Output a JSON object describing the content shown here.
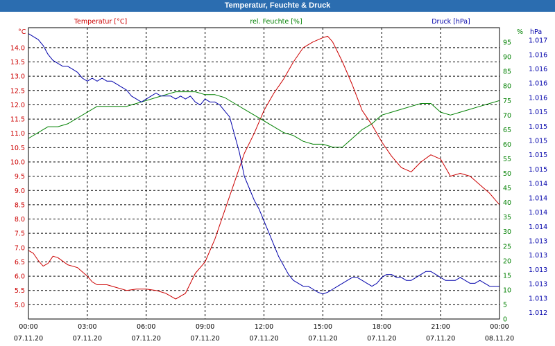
{
  "chart_data": {
    "type": "line",
    "title": "Temperatur, Feuchte & Druck",
    "x_labels": [
      {
        "time": "00:00",
        "date": "07.11.20"
      },
      {
        "time": "03:00",
        "date": "07.11.20"
      },
      {
        "time": "06:00",
        "date": "07.11.20"
      },
      {
        "time": "09:00",
        "date": "07.11.20"
      },
      {
        "time": "12:00",
        "date": "07.11.20"
      },
      {
        "time": "15:00",
        "date": "07.11.20"
      },
      {
        "time": "18:00",
        "date": "07.11.20"
      },
      {
        "time": "21:00",
        "date": "07.11.20"
      },
      {
        "time": "00:00",
        "date": "08.11.20"
      }
    ],
    "x_range_hours": [
      0,
      24
    ],
    "axes": {
      "temperature": {
        "label": "Temperatur [°C]",
        "unit": "°C",
        "color": "#cc0000",
        "side": "left",
        "range": [
          4.5,
          14.7
        ],
        "ticks": [
          "5.0",
          "5.5",
          "6.0",
          "6.5",
          "7.0",
          "7.5",
          "8.0",
          "8.5",
          "9.0",
          "9.5",
          "10.0",
          "10.5",
          "11.0",
          "11.5",
          "12.0",
          "12.5",
          "13.0",
          "13.5",
          "14.0"
        ]
      },
      "humidity": {
        "label": "rel. Feuchte [%]",
        "unit": "%",
        "color": "#008000",
        "side": "right",
        "range": [
          0,
          100
        ],
        "ticks": [
          "0",
          "5",
          "10",
          "15",
          "20",
          "25",
          "30",
          "35",
          "40",
          "45",
          "50",
          "55",
          "60",
          "65",
          "70",
          "75",
          "80",
          "85",
          "90",
          "95"
        ]
      },
      "pressure": {
        "label": "Druck [hPa]",
        "unit": "hPa",
        "color": "#0000aa",
        "side": "right-outer",
        "range": [
          1012.2,
          1017.1
        ],
        "ticks": [
          "1.012",
          "1.013",
          "1.013",
          "1.013",
          "1.013",
          "1.013",
          "1.014",
          "1.014",
          "1.014",
          "1.014",
          "1.015",
          "1.015",
          "1.015",
          "1.015",
          "1.015",
          "1.016",
          "1.016",
          "1.016",
          "1.016",
          "1.017"
        ]
      }
    },
    "series": [
      {
        "name": "Temperatur",
        "axis": "temperature",
        "color": "#cc0000",
        "x": [
          0,
          0.25,
          0.5,
          0.75,
          1,
          1.25,
          1.5,
          2,
          2.5,
          3,
          3.25,
          3.5,
          4,
          4.5,
          5,
          5.5,
          6,
          6.5,
          7,
          7.5,
          8,
          8.5,
          9,
          9.5,
          10,
          10.5,
          11,
          11.5,
          12,
          12.5,
          13,
          13.5,
          14,
          14.5,
          15,
          15.25,
          15.5,
          16,
          16.5,
          17,
          17.5,
          18,
          18.5,
          19,
          19.5,
          20,
          20.5,
          21,
          21.5,
          22,
          22.5,
          23,
          23.5,
          24
        ],
        "values": [
          6.9,
          6.8,
          6.55,
          6.35,
          6.45,
          6.7,
          6.65,
          6.4,
          6.3,
          6.0,
          5.8,
          5.7,
          5.7,
          5.6,
          5.5,
          5.55,
          5.55,
          5.5,
          5.4,
          5.2,
          5.4,
          6.1,
          6.5,
          7.3,
          8.3,
          9.3,
          10.3,
          11.0,
          11.8,
          12.4,
          12.9,
          13.5,
          14.0,
          14.2,
          14.35,
          14.4,
          14.2,
          13.5,
          12.7,
          11.8,
          11.3,
          10.7,
          10.2,
          9.8,
          9.65,
          10.0,
          10.25,
          10.1,
          9.5,
          9.6,
          9.5,
          9.2,
          8.9,
          8.5
        ]
      },
      {
        "name": "rel. Feuchte",
        "axis": "humidity",
        "color": "#008000",
        "x": [
          0,
          0.5,
          1,
          1.5,
          2,
          2.5,
          3,
          3.5,
          4,
          4.5,
          5,
          5.5,
          6,
          6.5,
          7,
          7.5,
          8,
          8.5,
          9,
          9.5,
          10,
          10.5,
          11,
          11.5,
          12,
          12.5,
          13,
          13.5,
          14,
          14.5,
          15,
          15.5,
          16,
          16.5,
          17,
          17.5,
          18,
          18.5,
          19,
          19.5,
          20,
          20.5,
          21,
          21.5,
          22,
          22.5,
          23,
          23.5,
          24
        ],
        "values": [
          62,
          64,
          66,
          66,
          67,
          69,
          71,
          73,
          73,
          73,
          73,
          74,
          75,
          76,
          77,
          78,
          78,
          78,
          77,
          77,
          76,
          74,
          72,
          70,
          68,
          66,
          64,
          63,
          61,
          60,
          60,
          59,
          59,
          62,
          65,
          67,
          70,
          71,
          72,
          73,
          74,
          74,
          71,
          70,
          71,
          72,
          73,
          74,
          75
        ]
      },
      {
        "name": "Druck",
        "axis": "pressure",
        "color": "#0000aa",
        "x": [
          0,
          0.25,
          0.5,
          0.75,
          1,
          1.25,
          1.5,
          1.75,
          2,
          2.25,
          2.5,
          2.75,
          3,
          3.25,
          3.5,
          3.75,
          4,
          4.25,
          4.5,
          4.75,
          5,
          5.25,
          5.5,
          5.75,
          6,
          6.25,
          6.5,
          6.75,
          7,
          7.25,
          7.5,
          7.75,
          8,
          8.25,
          8.5,
          8.75,
          9,
          9.25,
          9.5,
          9.75,
          10,
          10.25,
          10.5,
          10.75,
          11,
          11.25,
          11.5,
          11.75,
          12,
          12.25,
          12.5,
          12.75,
          13,
          13.25,
          13.5,
          13.75,
          14,
          14.25,
          14.5,
          14.75,
          15,
          15.25,
          15.5,
          15.75,
          16,
          16.25,
          16.5,
          16.75,
          17,
          17.25,
          17.5,
          17.75,
          18,
          18.25,
          18.5,
          18.75,
          19,
          19.25,
          19.5,
          19.75,
          20,
          20.25,
          20.5,
          20.75,
          21,
          21.25,
          21.5,
          21.75,
          22,
          22.25,
          22.5,
          22.75,
          23,
          23.25,
          23.5,
          23.75,
          24
        ],
        "values": [
          1017.0,
          1016.95,
          1016.9,
          1016.8,
          1016.65,
          1016.55,
          1016.5,
          1016.45,
          1016.45,
          1016.4,
          1016.35,
          1016.25,
          1016.2,
          1016.25,
          1016.2,
          1016.25,
          1016.2,
          1016.2,
          1016.15,
          1016.1,
          1016.05,
          1015.95,
          1015.9,
          1015.85,
          1015.9,
          1015.95,
          1016.0,
          1015.95,
          1015.95,
          1015.95,
          1015.9,
          1015.95,
          1015.9,
          1015.95,
          1015.85,
          1015.8,
          1015.9,
          1015.85,
          1015.85,
          1015.8,
          1015.7,
          1015.6,
          1015.3,
          1015.0,
          1014.6,
          1014.4,
          1014.2,
          1014.05,
          1013.85,
          1013.65,
          1013.45,
          1013.25,
          1013.1,
          1012.95,
          1012.85,
          1012.8,
          1012.75,
          1012.75,
          1012.7,
          1012.65,
          1012.62,
          1012.65,
          1012.7,
          1012.75,
          1012.8,
          1012.85,
          1012.9,
          1012.9,
          1012.85,
          1012.8,
          1012.75,
          1012.8,
          1012.9,
          1012.95,
          1012.95,
          1012.9,
          1012.9,
          1012.85,
          1012.85,
          1012.9,
          1012.95,
          1013.0,
          1013.0,
          1012.95,
          1012.9,
          1012.85,
          1012.85,
          1012.85,
          1012.9,
          1012.85,
          1012.8,
          1012.8,
          1012.85,
          1012.8,
          1012.75,
          1012.75,
          1012.75
        ]
      }
    ]
  }
}
